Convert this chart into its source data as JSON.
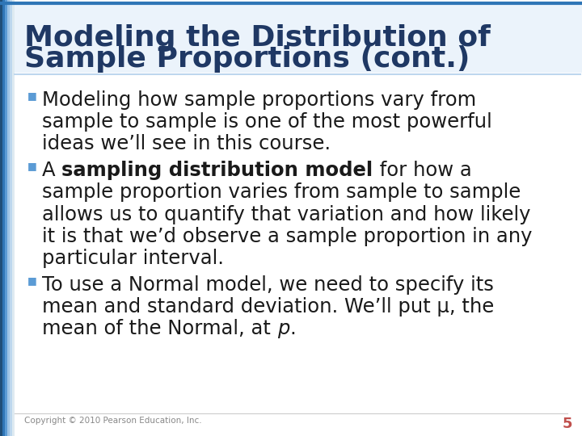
{
  "title_line1": "Modeling the Distribution of",
  "title_line2": "Sample Proportions (cont.)",
  "title_color": "#1F3864",
  "background_color": "#FFFFFF",
  "bullet_color": "#5B9BD5",
  "body_text_color": "#1a1a1a",
  "body_font_size": 17.5,
  "title_font_size": 26,
  "footer_text": "Copyright © 2010 Pearson Education, Inc.",
  "footer_page": "5",
  "footer_color": "#888888",
  "page_num_color": "#C0504D",
  "left_bar_gradient": [
    "#1F4E79",
    "#2E75B6",
    "#5B9BD5",
    "#9DC3E6",
    "#BDD7EE",
    "#DEEAF1"
  ],
  "top_line_color": "#2E75B6",
  "bullet1_lines": [
    "Modeling how sample proportions vary from",
    "sample to sample is one of the most powerful",
    "ideas we’ll see in this course."
  ],
  "bullet2_line1_pre": "A ",
  "bullet2_line1_bold": "sampling distribution model",
  "bullet2_line1_post": " for how a",
  "bullet2_lines_rest": [
    "sample proportion varies from sample to sample",
    "allows us to quantify that variation and how likely",
    "it is that we’d observe a sample proportion in any",
    "particular interval."
  ],
  "bullet3_lines": [
    "To use a Normal model, we need to specify its",
    "mean and standard deviation. We’ll put μ, the",
    "mean of the Normal, at p."
  ],
  "bullet3_line2_italic_start": "mean and standard deviation. We’ll put ",
  "bullet3_line2_mu": "μ",
  "bullet3_line2_end": ", the",
  "bullet3_line3_pre": "mean of the Normal, at ",
  "bullet3_line3_italic": "p",
  "bullet3_line3_end": "."
}
